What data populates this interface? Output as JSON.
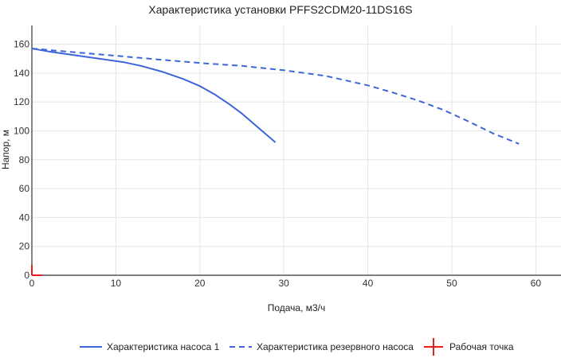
{
  "chart_data": {
    "type": "line",
    "title": "Характеристика установки PFFS2CDM20-11DS16S",
    "xlabel": "Подача, м3/ч",
    "ylabel": "Напор, м",
    "xlim": [
      0,
      63
    ],
    "ylim": [
      0,
      173
    ],
    "x_ticks": [
      0,
      10,
      20,
      30,
      40,
      50,
      60
    ],
    "y_ticks": [
      0,
      20,
      40,
      60,
      80,
      100,
      120,
      140,
      160
    ],
    "grid": true,
    "legend_position": "bottom",
    "series": [
      {
        "name": "Характеристика насоса 1",
        "color": "#3c66d8",
        "dash": "solid",
        "x": [
          0,
          2,
          5,
          8,
          11,
          13,
          15.5,
          18,
          20,
          21.7,
          23.5,
          25,
          27,
          29
        ],
        "y": [
          157,
          155,
          152.5,
          150,
          147.5,
          145,
          141,
          136,
          131,
          125.5,
          118.5,
          112,
          102,
          92
        ]
      },
      {
        "name": "Характеристика резервного насоса",
        "color": "#3c66d8",
        "dash": "dashed",
        "x": [
          0,
          5,
          10,
          15,
          20,
          25,
          30,
          35,
          40,
          43,
          46,
          49,
          52,
          55,
          58
        ],
        "y": [
          157,
          154.5,
          152,
          149.5,
          147,
          145,
          142,
          138,
          131.5,
          126.5,
          121,
          114.5,
          106.5,
          98,
          91
        ]
      },
      {
        "name": "Рабочая точка",
        "color": "#ee1b1b",
        "type": "marker",
        "marker": "cross",
        "x": [
          0
        ],
        "y": [
          0
        ]
      }
    ]
  }
}
